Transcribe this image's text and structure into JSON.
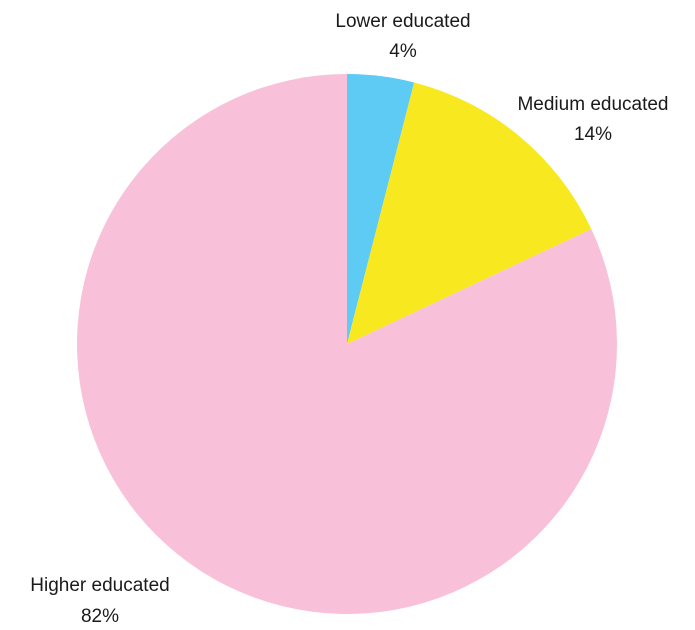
{
  "chart_data": {
    "type": "pie",
    "title": "",
    "slices": [
      {
        "label": "Lower educated",
        "value": 4,
        "value_label": "4%",
        "color": "#5ecbf5"
      },
      {
        "label": "Medium educated",
        "value": 14,
        "value_label": "14%",
        "color": "#f8e81f"
      },
      {
        "label": "Higher educated",
        "value": 82,
        "value_label": "82%",
        "color": "#f8c1d9"
      }
    ],
    "start_angle": "12 o'clock",
    "direction": "clockwise",
    "legend": "none (labels outside slices)"
  }
}
